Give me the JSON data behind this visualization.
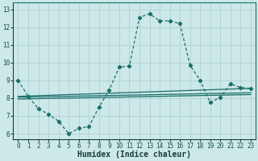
{
  "xlabel": "Humidex (Indice chaleur)",
  "background_color": "#cce8e8",
  "line_color": "#1a6e6a",
  "grid_color": "#aacccc",
  "xlim": [
    -0.5,
    23.5
  ],
  "ylim": [
    5.7,
    13.4
  ],
  "yticks": [
    6,
    7,
    8,
    9,
    10,
    11,
    12,
    13
  ],
  "xticks": [
    0,
    1,
    2,
    3,
    4,
    5,
    6,
    7,
    8,
    9,
    10,
    11,
    12,
    13,
    14,
    15,
    16,
    17,
    18,
    19,
    20,
    21,
    22,
    23
  ],
  "curve1_x": [
    0,
    1,
    2,
    3,
    4,
    5,
    6,
    7,
    8,
    9,
    10,
    11,
    12,
    13,
    14,
    15,
    16,
    17,
    18,
    19,
    20,
    21,
    22,
    23
  ],
  "curve1_y": [
    9.0,
    8.1,
    7.4,
    7.1,
    6.7,
    6.0,
    6.3,
    6.4,
    7.5,
    8.45,
    9.75,
    9.8,
    12.55,
    12.75,
    12.35,
    12.35,
    12.2,
    9.85,
    9.0,
    7.75,
    8.05,
    8.8,
    8.6,
    8.55
  ],
  "line1_x": [
    0,
    23
  ],
  "line1_y": [
    8.1,
    8.55
  ],
  "line2_x": [
    0,
    23
  ],
  "line2_y": [
    8.05,
    8.3
  ],
  "line3_x": [
    0,
    23
  ],
  "line3_y": [
    7.95,
    8.2
  ]
}
